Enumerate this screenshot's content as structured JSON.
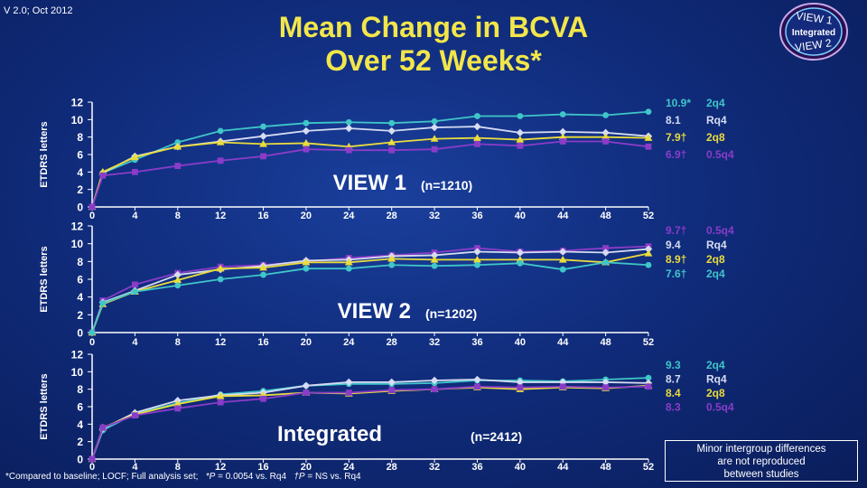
{
  "version": "V 2.0; Oct 2012",
  "title": [
    "Mean Change in BCVA",
    "Over 52 Weeks*"
  ],
  "badge": {
    "top": "VIEW 1",
    "middle": "Integrated",
    "bottom": "VIEW 2"
  },
  "footer": {
    "prefix": "*Compared to baseline; LOCF; Full analysis set;",
    "p1_italic": "*P",
    "p1_rest": " = 0.0054 vs. Rq4",
    "p2_italic": "†P",
    "p2_rest": " = NS vs. Rq4"
  },
  "note": [
    "Minor intergroup differences",
    "are not reproduced",
    "between studies"
  ],
  "colors": {
    "2q4": "#3fc6c8",
    "Rq4": "#d6dcf2",
    "2q8": "#eadc3c",
    "0.5q4": "#8a3cc8",
    "title": "#f2e64a"
  },
  "chart_data": [
    {
      "type": "line",
      "title": "VIEW 1",
      "n_label": "(n=1210)",
      "ylabel": "ETDRS letters",
      "x": [
        0,
        1,
        4,
        8,
        12,
        16,
        20,
        24,
        28,
        32,
        36,
        40,
        44,
        48,
        52
      ],
      "xticks": [
        0,
        4,
        8,
        12,
        16,
        20,
        24,
        28,
        32,
        36,
        40,
        44,
        48,
        52
      ],
      "ylim": [
        0,
        12
      ],
      "yticks": [
        0,
        2,
        4,
        6,
        8,
        10,
        12
      ],
      "series": [
        {
          "name": "2q4",
          "marker": "circle",
          "final_value": "10.9*",
          "label": "2q4",
          "values": [
            0,
            3.9,
            5.4,
            7.4,
            8.7,
            9.2,
            9.6,
            9.7,
            9.6,
            9.8,
            10.4,
            10.4,
            10.6,
            10.5,
            10.9
          ]
        },
        {
          "name": "Rq4",
          "marker": "diamond",
          "final_value": "8.1",
          "label": "Rq4",
          "values": [
            0,
            3.9,
            5.8,
            6.9,
            7.5,
            8.1,
            8.7,
            9.0,
            8.7,
            9.1,
            9.2,
            8.5,
            8.6,
            8.5,
            8.1
          ]
        },
        {
          "name": "2q8",
          "marker": "triangle",
          "final_value": "7.9†",
          "label": "2q8",
          "values": [
            0,
            4.0,
            5.7,
            6.9,
            7.4,
            7.2,
            7.3,
            6.9,
            7.4,
            7.8,
            7.9,
            7.7,
            8.0,
            8.0,
            7.9
          ]
        },
        {
          "name": "0.5q4",
          "marker": "square",
          "final_value": "6.9†",
          "label": "0.5q4",
          "values": [
            0,
            3.6,
            4.0,
            4.7,
            5.3,
            5.8,
            6.6,
            6.5,
            6.5,
            6.6,
            7.2,
            7.0,
            7.5,
            7.5,
            6.9
          ]
        }
      ]
    },
    {
      "type": "line",
      "title": "VIEW 2",
      "n_label": "(n=1202)",
      "ylabel": "ETDRS letters",
      "x": [
        0,
        1,
        4,
        8,
        12,
        16,
        20,
        24,
        28,
        32,
        36,
        40,
        44,
        48,
        52
      ],
      "xticks": [
        0,
        4,
        8,
        12,
        16,
        20,
        24,
        28,
        32,
        36,
        40,
        44,
        48,
        52
      ],
      "ylim": [
        0,
        12
      ],
      "yticks": [
        0,
        2,
        4,
        6,
        8,
        10,
        12
      ],
      "series": [
        {
          "name": "0.5q4",
          "marker": "square",
          "final_value": "9.7†",
          "label": "0.5q4",
          "values": [
            0,
            3.6,
            5.4,
            6.7,
            7.4,
            7.6,
            8.0,
            8.4,
            8.7,
            9.0,
            9.5,
            9.1,
            9.2,
            9.5,
            9.7
          ]
        },
        {
          "name": "Rq4",
          "marker": "diamond",
          "final_value": "9.4",
          "label": "Rq4",
          "values": [
            0,
            3.4,
            4.7,
            6.5,
            7.1,
            7.5,
            8.1,
            8.2,
            8.6,
            8.7,
            9.1,
            9.0,
            9.1,
            9.0,
            9.4
          ]
        },
        {
          "name": "2q8",
          "marker": "triangle",
          "final_value": "8.9†",
          "label": "2q8",
          "values": [
            0,
            3.2,
            4.6,
            5.9,
            7.2,
            7.3,
            7.9,
            7.9,
            8.3,
            8.2,
            8.2,
            8.2,
            8.2,
            7.9,
            8.9
          ]
        },
        {
          "name": "2q4",
          "marker": "circle",
          "final_value": "7.6†",
          "label": "2q4",
          "values": [
            0,
            3.3,
            4.6,
            5.3,
            6.0,
            6.5,
            7.2,
            7.2,
            7.6,
            7.5,
            7.6,
            7.8,
            7.1,
            7.9,
            7.6
          ]
        }
      ]
    },
    {
      "type": "line",
      "title": "Integrated",
      "n_label": "(n=2412)",
      "ylabel": "ETDRS letters",
      "x": [
        0,
        1,
        4,
        8,
        12,
        16,
        20,
        24,
        28,
        32,
        36,
        40,
        44,
        48,
        52
      ],
      "xticks": [
        0,
        4,
        8,
        12,
        16,
        20,
        24,
        28,
        32,
        36,
        40,
        44,
        48,
        52
      ],
      "ylim": [
        0,
        12
      ],
      "yticks": [
        0,
        2,
        4,
        6,
        8,
        10,
        12
      ],
      "series": [
        {
          "name": "2q4",
          "marker": "circle",
          "final_value": "9.3",
          "label": "2q4",
          "values": [
            0,
            3.3,
            5.2,
            6.4,
            7.4,
            7.8,
            8.4,
            8.6,
            8.6,
            8.7,
            9.0,
            9.0,
            8.9,
            9.1,
            9.3
          ]
        },
        {
          "name": "Rq4",
          "marker": "diamond",
          "final_value": "8.7",
          "label": "Rq4",
          "values": [
            0,
            3.5,
            5.3,
            6.7,
            7.3,
            7.6,
            8.4,
            8.8,
            8.8,
            9.0,
            9.1,
            8.8,
            8.8,
            8.8,
            8.7
          ]
        },
        {
          "name": "2q8",
          "marker": "triangle",
          "final_value": "8.4",
          "label": "2q8",
          "values": [
            0,
            3.6,
            5.1,
            6.3,
            7.2,
            7.3,
            7.6,
            7.5,
            7.8,
            8.0,
            8.2,
            8.0,
            8.2,
            8.1,
            8.4
          ]
        },
        {
          "name": "0.5q4",
          "marker": "square",
          "final_value": "8.3",
          "label": "0.5q4",
          "values": [
            0,
            3.6,
            5.0,
            5.8,
            6.5,
            6.9,
            7.6,
            7.6,
            7.9,
            8.0,
            8.3,
            8.2,
            8.3,
            8.2,
            8.3
          ]
        }
      ]
    }
  ]
}
